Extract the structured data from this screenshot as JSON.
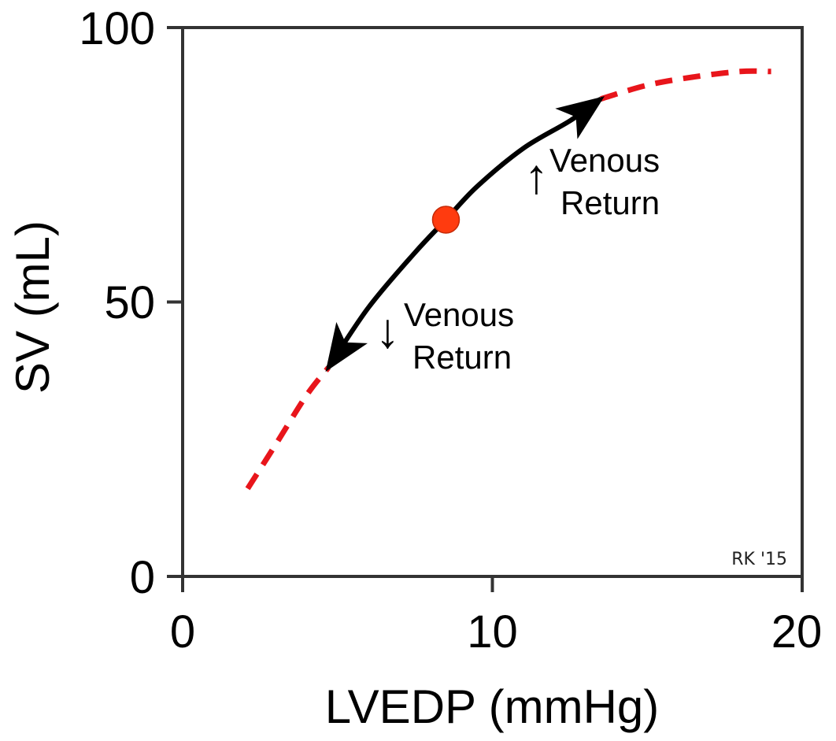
{
  "chart_data": {
    "type": "line",
    "xlabel": "LVEDP (mmHg)",
    "ylabel": "SV (mL)",
    "xlim": [
      0,
      20
    ],
    "ylim": [
      0,
      100
    ],
    "xticks": [
      0,
      10,
      20
    ],
    "yticks": [
      0,
      50,
      100
    ],
    "xtick_labels": [
      "0",
      "10",
      "20"
    ],
    "ytick_labels": [
      "0",
      "50",
      "100"
    ],
    "grid": false,
    "series": [
      {
        "style": "dashed",
        "color": "#e8151b",
        "x": [
          2.1,
          3.0,
          4.0,
          4.7
        ],
        "y": [
          16,
          24,
          33,
          38
        ]
      },
      {
        "style": "solid",
        "color": "#000000",
        "x": [
          4.7,
          6.0,
          7.5,
          8.5,
          9.5,
          11.0,
          12.5,
          13.5
        ],
        "y": [
          38,
          49,
          59,
          65,
          71,
          78,
          83,
          87
        ]
      },
      {
        "style": "dashed",
        "color": "#e8151b",
        "x": [
          13.5,
          15.0,
          16.5,
          18.0,
          19.0
        ],
        "y": [
          87,
          89.5,
          91,
          92,
          92
        ]
      }
    ],
    "marker_point": {
      "x": 8.5,
      "y": 65,
      "color": "#ff3b0f"
    },
    "arrows": [
      {
        "direction": "up",
        "from": [
          8.5,
          65
        ],
        "to": [
          13.5,
          87
        ]
      },
      {
        "direction": "down",
        "from": [
          8.5,
          65
        ],
        "to": [
          4.7,
          38
        ]
      }
    ],
    "annotations": [
      {
        "arrow_glyph": "↑",
        "line1": "Venous",
        "line2": "Return",
        "x": 11.9,
        "y": 76
      },
      {
        "arrow_glyph": "↓",
        "line1": "Venous",
        "line2": "Return",
        "x": 7.2,
        "y": 48
      }
    ],
    "credit": "RK '15"
  }
}
